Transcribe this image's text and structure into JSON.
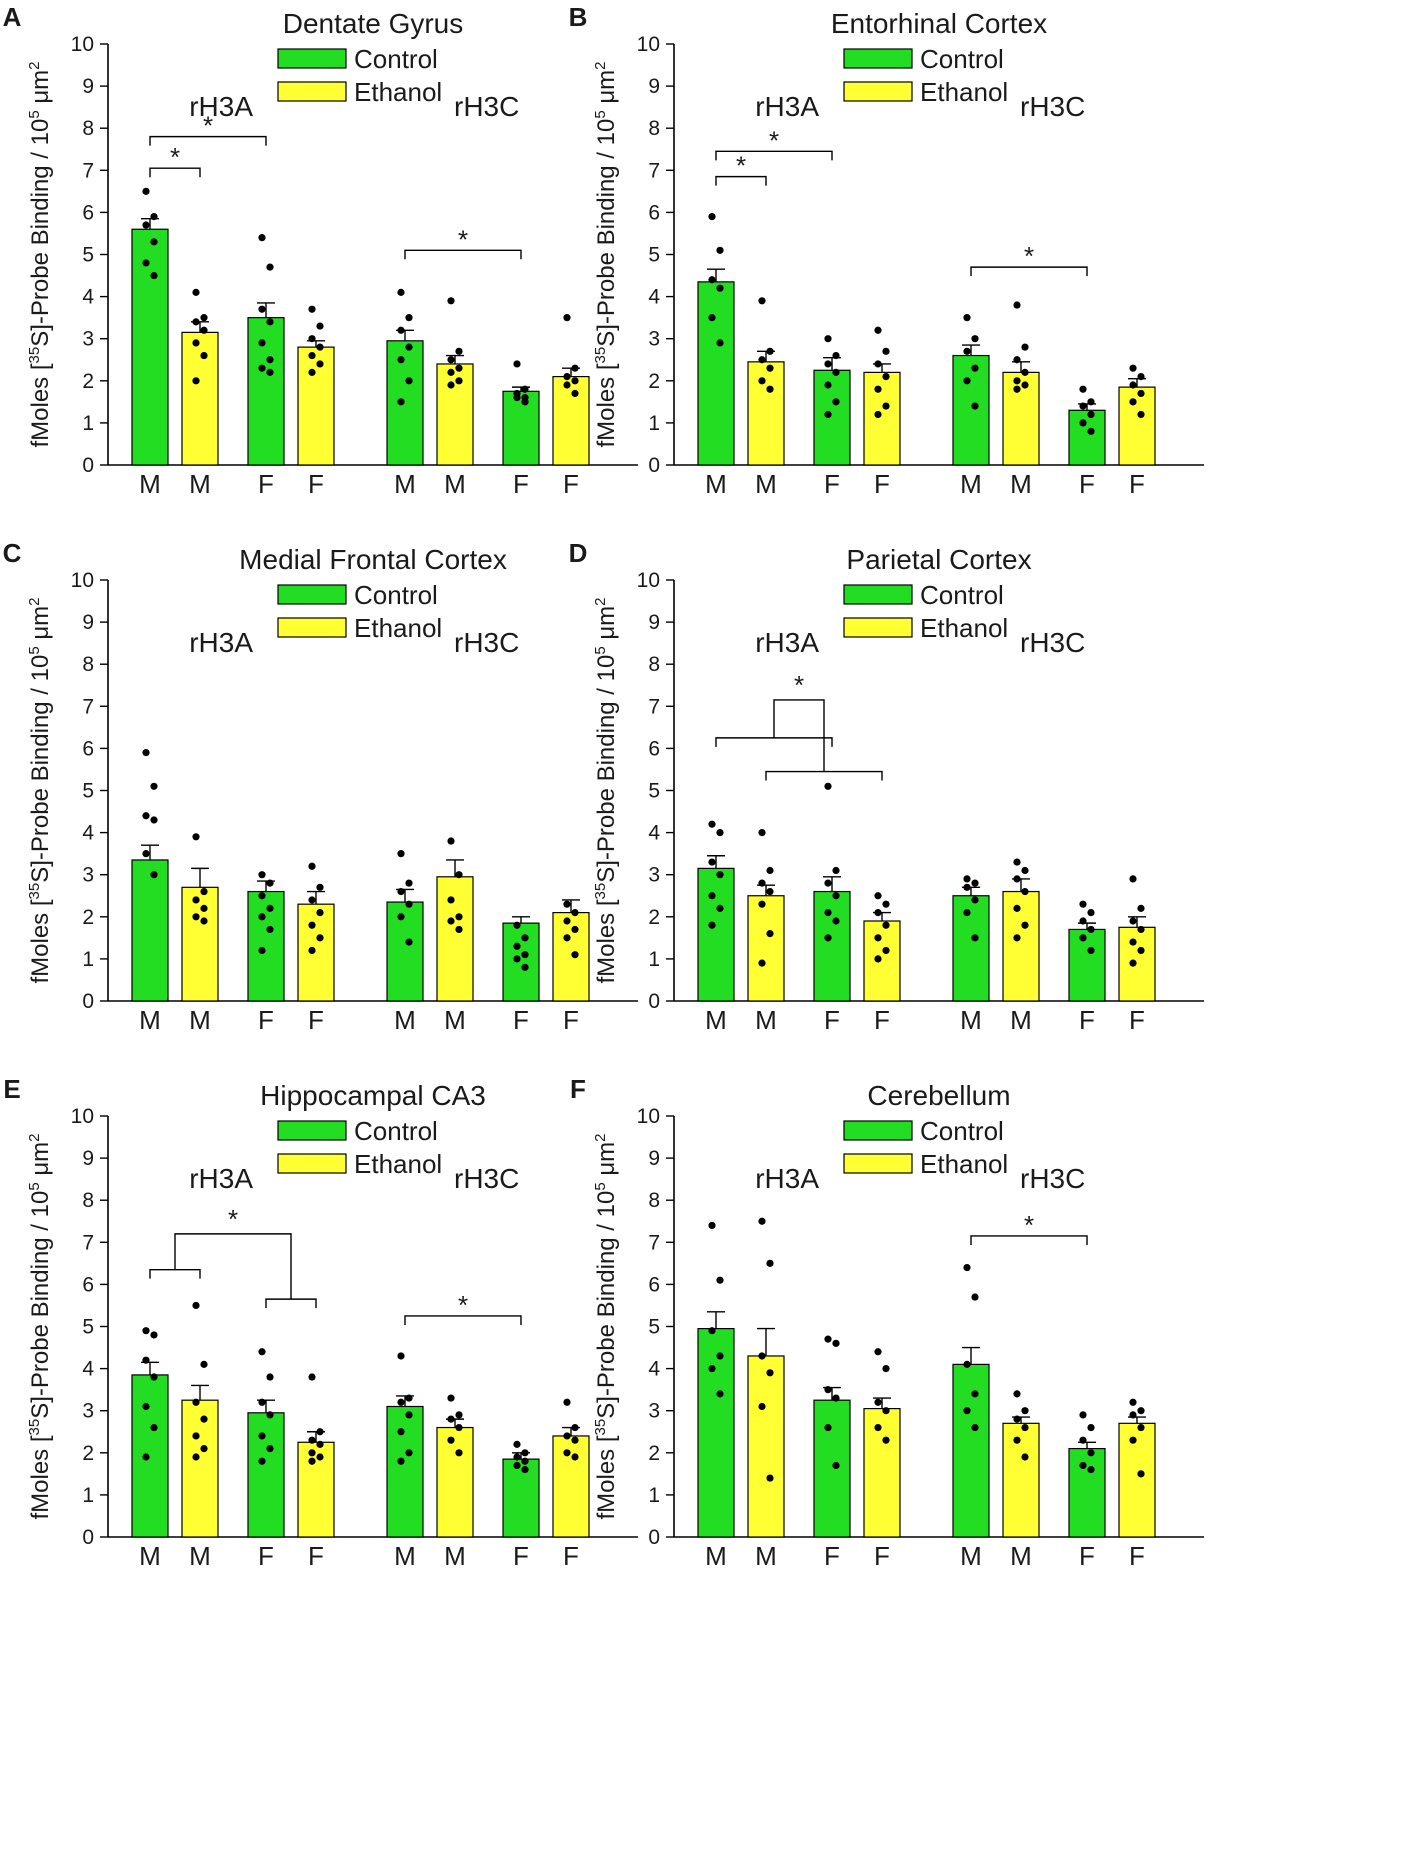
{
  "colors": {
    "control": "#22dd22",
    "ethanol": "#ffff33",
    "stroke": "#000000"
  },
  "shared": {
    "ylabel": "fMoles [35S]-Probe Binding / 105 μm2",
    "legend": [
      "Control",
      "Ethanol"
    ],
    "group_labels": [
      "rH3A",
      "rH3C"
    ],
    "categories": [
      "M",
      "M",
      "F",
      "F",
      "M",
      "M",
      "F",
      "F"
    ],
    "series_of_bar": [
      "Control",
      "Ethanol",
      "Control",
      "Ethanol",
      "Control",
      "Ethanol",
      "Control",
      "Ethanol"
    ],
    "ylim": [
      0,
      10
    ],
    "yticks": [
      "0",
      "1",
      "2",
      "3",
      "4",
      "5",
      "6",
      "7",
      "8",
      "9",
      "10"
    ],
    "star": "*"
  },
  "chart_data": [
    {
      "panel": "A",
      "title": "Dentate Gyrus",
      "type": "bar",
      "values": [
        5.6,
        3.15,
        3.5,
        2.8,
        2.95,
        2.4,
        1.75,
        2.1
      ],
      "errors": [
        0.25,
        0.25,
        0.35,
        0.15,
        0.25,
        0.2,
        0.1,
        0.2
      ],
      "points": [
        [
          6.5,
          5.9,
          5.7,
          5.3,
          4.8,
          4.5
        ],
        [
          4.1,
          3.5,
          3.4,
          3.2,
          2.9,
          2.6,
          2.0
        ],
        [
          5.4,
          4.7,
          3.7,
          3.4,
          2.9,
          2.5,
          2.3,
          2.2
        ],
        [
          3.7,
          3.3,
          3.0,
          2.8,
          2.6,
          2.4,
          2.2
        ],
        [
          4.1,
          3.5,
          3.2,
          2.8,
          2.5,
          2.0,
          1.5
        ],
        [
          3.9,
          2.7,
          2.5,
          2.3,
          2.2,
          2.0,
          1.9
        ],
        [
          2.4,
          1.8,
          1.7,
          1.6,
          1.6,
          1.5
        ],
        [
          3.5,
          2.3,
          2.1,
          2.0,
          1.9,
          1.7
        ]
      ],
      "significance": [
        {
          "type": "simple",
          "from": 0,
          "to": 1,
          "y": 7.05,
          "label": "*"
        },
        {
          "type": "simple",
          "from": 0,
          "to": 2,
          "y": 7.8,
          "label": "*"
        },
        {
          "type": "simple",
          "from": 4,
          "to": 6,
          "y": 5.1,
          "label": "*"
        }
      ]
    },
    {
      "panel": "B",
      "title": "Entorhinal Cortex",
      "type": "bar",
      "values": [
        4.35,
        2.45,
        2.25,
        2.2,
        2.6,
        2.2,
        1.3,
        1.85
      ],
      "errors": [
        0.3,
        0.25,
        0.3,
        0.2,
        0.25,
        0.25,
        0.15,
        0.2
      ],
      "points": [
        [
          5.9,
          5.1,
          4.4,
          4.2,
          3.5,
          2.9
        ],
        [
          3.9,
          2.7,
          2.5,
          2.3,
          2.0,
          1.8
        ],
        [
          3.0,
          2.6,
          2.4,
          2.2,
          1.9,
          1.5,
          1.2
        ],
        [
          3.2,
          2.7,
          2.4,
          2.1,
          1.8,
          1.4,
          1.2
        ],
        [
          3.5,
          3.0,
          2.7,
          2.3,
          2.0,
          1.4
        ],
        [
          3.8,
          2.8,
          2.5,
          2.2,
          2.0,
          1.9,
          1.8
        ],
        [
          1.8,
          1.5,
          1.4,
          1.2,
          1.0,
          0.8
        ],
        [
          2.3,
          2.1,
          1.9,
          1.7,
          1.5,
          1.2
        ]
      ],
      "significance": [
        {
          "type": "simple",
          "from": 0,
          "to": 1,
          "y": 6.85,
          "label": "*"
        },
        {
          "type": "simple",
          "from": 0,
          "to": 2,
          "y": 7.45,
          "label": "*"
        },
        {
          "type": "simple",
          "from": 4,
          "to": 6,
          "y": 4.7,
          "label": "*"
        }
      ]
    },
    {
      "panel": "C",
      "title": "Medial Frontal Cortex",
      "type": "bar",
      "values": [
        3.35,
        2.7,
        2.6,
        2.3,
        2.35,
        2.95,
        1.85,
        2.1
      ],
      "errors": [
        0.35,
        0.45,
        0.25,
        0.3,
        0.3,
        0.4,
        0.15,
        0.3
      ],
      "points": [
        [
          5.9,
          5.1,
          4.4,
          4.3,
          3.5,
          3.0
        ],
        [
          3.9,
          2.6,
          2.4,
          2.2,
          2.0,
          1.9
        ],
        [
          3.0,
          2.8,
          2.5,
          2.2,
          2.0,
          1.7,
          1.2
        ],
        [
          3.2,
          2.7,
          2.4,
          2.1,
          1.8,
          1.5,
          1.2
        ],
        [
          3.5,
          2.8,
          2.6,
          2.3,
          2.0,
          1.4
        ],
        [
          3.8,
          3.0,
          2.4,
          2.0,
          1.9,
          1.7
        ],
        [
          1.8,
          1.5,
          1.3,
          1.1,
          1.0,
          0.8
        ],
        [
          2.3,
          2.1,
          1.9,
          1.7,
          1.5,
          1.1
        ]
      ],
      "significance": []
    },
    {
      "panel": "D",
      "title": "Parietal Cortex",
      "type": "bar",
      "values": [
        3.15,
        2.5,
        2.6,
        1.9,
        2.5,
        2.6,
        1.7,
        1.75
      ],
      "errors": [
        0.3,
        0.25,
        0.35,
        0.2,
        0.2,
        0.3,
        0.15,
        0.25
      ],
      "points": [
        [
          4.2,
          4.0,
          3.3,
          3.0,
          2.5,
          2.2,
          1.8
        ],
        [
          4.0,
          3.1,
          2.8,
          2.6,
          2.3,
          1.6,
          0.9
        ],
        [
          5.1,
          3.1,
          2.8,
          2.5,
          2.1,
          1.9,
          1.5
        ],
        [
          2.5,
          2.3,
          2.1,
          1.8,
          1.5,
          1.2,
          1.0
        ],
        [
          2.9,
          2.8,
          2.7,
          2.4,
          2.1,
          1.5
        ],
        [
          3.3,
          3.1,
          2.9,
          2.6,
          2.2,
          1.8,
          1.5
        ],
        [
          2.3,
          2.1,
          1.9,
          1.7,
          1.5,
          1.2
        ],
        [
          2.9,
          2.2,
          1.9,
          1.7,
          1.4,
          1.2,
          0.9
        ]
      ],
      "significance": [
        {
          "type": "nested",
          "pairs": [
            [
              0,
              2
            ],
            [
              1,
              3
            ]
          ],
          "y1": 6.25,
          "y2": 5.45,
          "top": 7.15,
          "label": "*"
        }
      ]
    },
    {
      "panel": "E",
      "title": "Hippocampal CA3",
      "type": "bar",
      "values": [
        3.85,
        3.25,
        2.95,
        2.25,
        3.1,
        2.6,
        1.85,
        2.4
      ],
      "errors": [
        0.3,
        0.35,
        0.3,
        0.25,
        0.25,
        0.2,
        0.15,
        0.2
      ],
      "points": [
        [
          4.9,
          4.8,
          4.2,
          3.8,
          3.1,
          2.6,
          1.9
        ],
        [
          5.5,
          4.1,
          3.2,
          2.8,
          2.4,
          2.1,
          1.9
        ],
        [
          4.4,
          3.8,
          3.2,
          2.9,
          2.4,
          2.1,
          1.8
        ],
        [
          3.8,
          2.5,
          2.3,
          2.2,
          2.0,
          1.9,
          1.8
        ],
        [
          4.3,
          3.3,
          3.2,
          2.9,
          2.5,
          2.0,
          1.8
        ],
        [
          3.3,
          2.9,
          2.8,
          2.6,
          2.3,
          2.0
        ],
        [
          2.2,
          2.0,
          1.9,
          1.8,
          1.7,
          1.6
        ],
        [
          3.2,
          2.6,
          2.4,
          2.3,
          2.0,
          1.9
        ]
      ],
      "significance": [
        {
          "type": "nested",
          "pairs": [
            [
              0,
              1
            ],
            [
              2,
              3
            ]
          ],
          "y1": 6.35,
          "y2": 5.65,
          "top": 7.2,
          "label": "*"
        },
        {
          "type": "simple",
          "from": 4,
          "to": 6,
          "y": 5.25,
          "label": "*"
        }
      ]
    },
    {
      "panel": "F",
      "title": "Cerebellum",
      "type": "bar",
      "values": [
        4.95,
        4.3,
        3.25,
        3.05,
        4.1,
        2.7,
        2.1,
        2.7
      ],
      "errors": [
        0.4,
        0.65,
        0.3,
        0.25,
        0.4,
        0.15,
        0.15,
        0.15
      ],
      "points": [
        [
          7.4,
          6.1,
          4.9,
          4.3,
          4.0,
          3.4
        ],
        [
          7.5,
          6.5,
          4.3,
          3.9,
          3.1,
          1.4
        ],
        [
          4.7,
          4.6,
          3.5,
          3.3,
          2.6,
          1.7
        ],
        [
          4.4,
          4.0,
          3.2,
          3.0,
          2.6,
          2.3
        ],
        [
          6.4,
          5.7,
          4.1,
          3.4,
          3.0,
          2.6
        ],
        [
          3.4,
          3.0,
          2.8,
          2.6,
          2.3,
          1.9
        ],
        [
          2.9,
          2.6,
          2.3,
          2.0,
          1.7,
          1.6
        ],
        [
          3.2,
          3.0,
          2.9,
          2.6,
          2.3,
          1.5
        ]
      ],
      "significance": [
        {
          "type": "simple",
          "from": 4,
          "to": 6,
          "y": 7.15,
          "label": "*"
        }
      ]
    }
  ]
}
